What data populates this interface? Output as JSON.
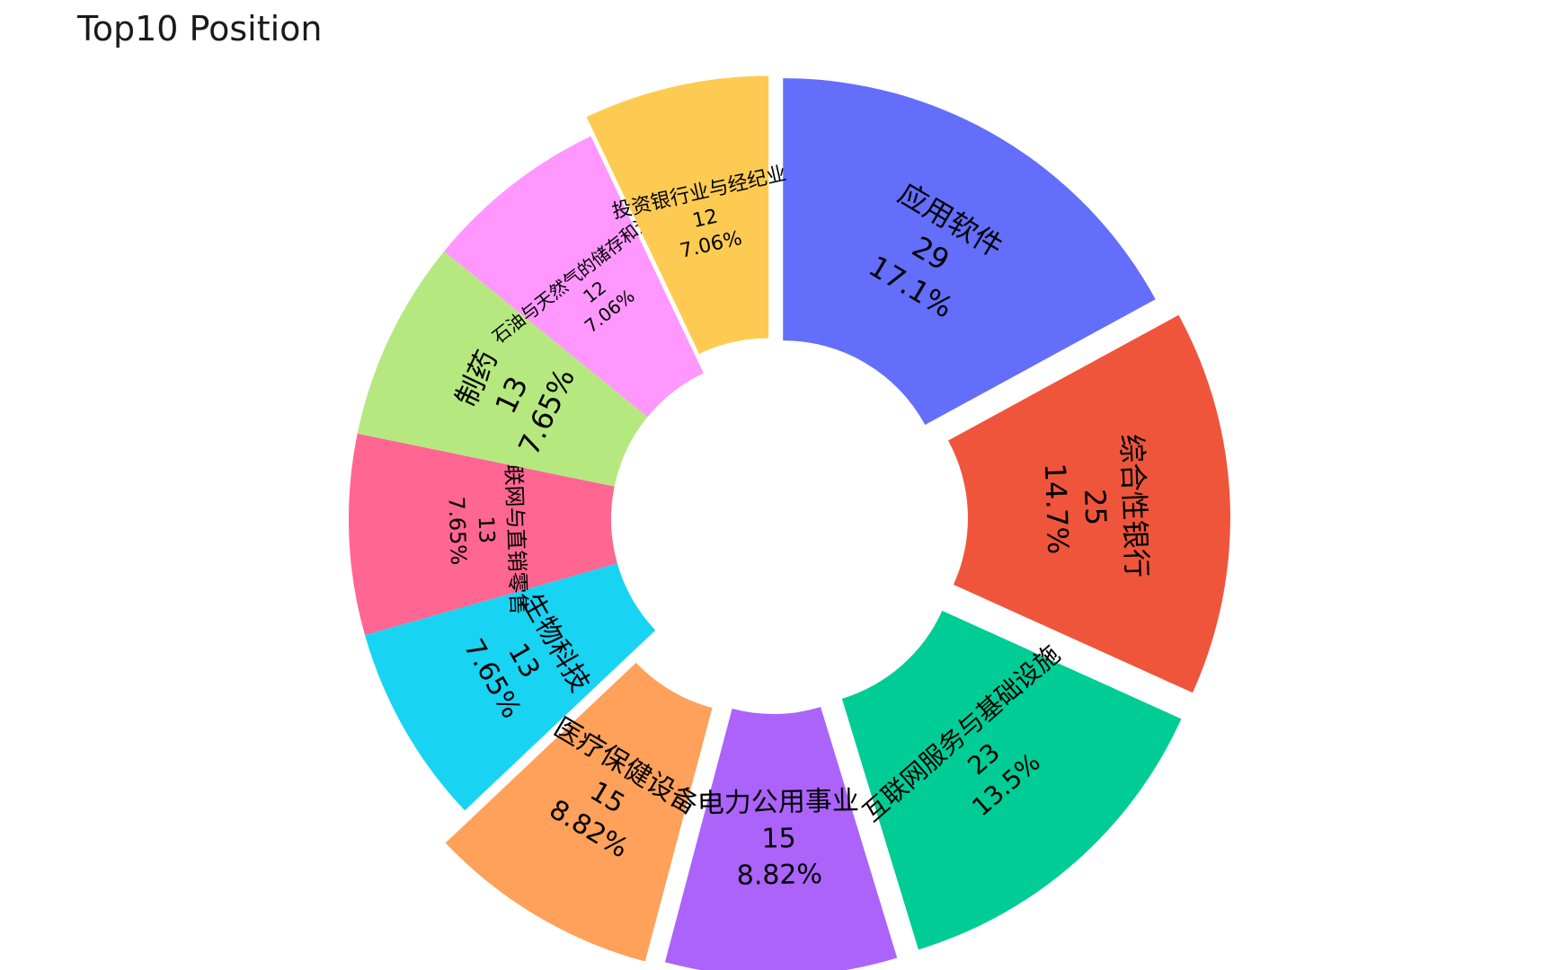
{
  "chart_data": {
    "type": "pie",
    "title": "Top10 Position",
    "donut": true,
    "exploded": true,
    "categories": [
      "应用软件",
      "综合性银行",
      "互联网服务与基础设施",
      "电力公用事业",
      "医疗保健设备",
      "生物科技",
      "互联网与直销零售",
      "制药",
      "石油与天然气的储存和运输",
      "投资银行业与经纪业"
    ],
    "values": [
      29,
      25,
      23,
      15,
      15,
      13,
      13,
      13,
      12,
      12
    ],
    "percent_labels": [
      "17.1%",
      "14.7%",
      "13.5%",
      "8.82%",
      "8.82%",
      "7.65%",
      "7.65%",
      "7.65%",
      "7.06%",
      "7.06%"
    ],
    "colors": [
      "#636efa",
      "#ef553b",
      "#00cc96",
      "#ab63fa",
      "#ffa15a",
      "#19d3f3",
      "#ff6692",
      "#b6e880",
      "#ff97ff",
      "#fecb52"
    ],
    "legend": "none"
  }
}
